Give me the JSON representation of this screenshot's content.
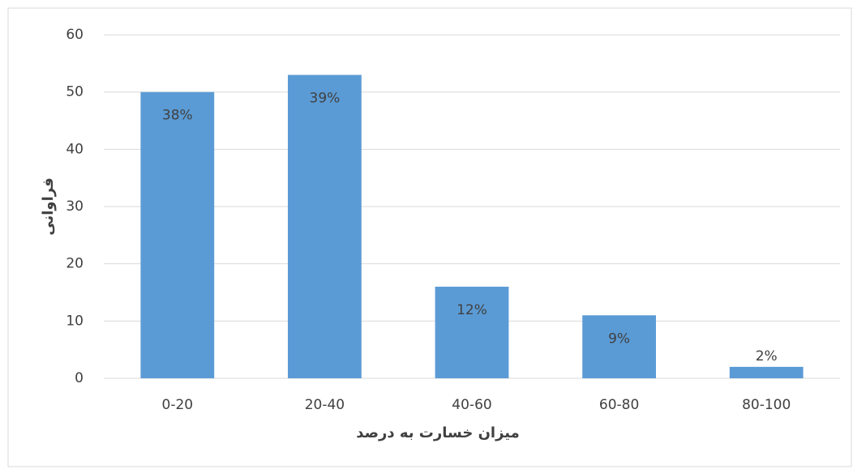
{
  "chart_data": {
    "type": "bar",
    "categories": [
      "0-20",
      "20-40",
      "40-60",
      "60-80",
      "80-100"
    ],
    "values": [
      50,
      53,
      16,
      11,
      2
    ],
    "percent_labels": [
      "38%",
      "39%",
      "12%",
      "9%",
      "2%"
    ],
    "color": "#5b9bd5",
    "ylim": [
      0,
      60
    ],
    "yticks": [
      0,
      10,
      20,
      30,
      40,
      50,
      60
    ],
    "grid": true,
    "x_label": "میزان خسارت به درصد",
    "y_label": "فراوانی"
  }
}
